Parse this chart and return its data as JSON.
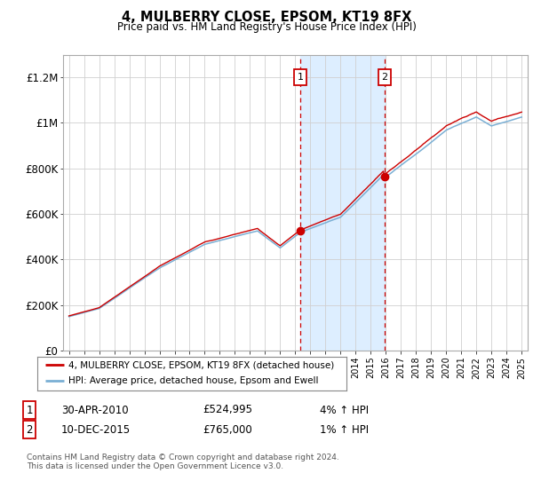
{
  "title": "4, MULBERRY CLOSE, EPSOM, KT19 8FX",
  "subtitle": "Price paid vs. HM Land Registry's House Price Index (HPI)",
  "ylim": [
    0,
    1300000
  ],
  "yticks": [
    0,
    200000,
    400000,
    600000,
    800000,
    1000000,
    1200000
  ],
  "ytick_labels": [
    "£0",
    "£200K",
    "£400K",
    "£600K",
    "£800K",
    "£1M",
    "£1.2M"
  ],
  "sale1_year": 2010.33,
  "sale1_price": 524995,
  "sale2_year": 2015.92,
  "sale2_price": 765000,
  "line_color_property": "#cc0000",
  "line_color_hpi": "#7aafd4",
  "shaded_region_color": "#ddeeff",
  "vline_color": "#cc0000",
  "box_color": "#cc0000",
  "footer": "Contains HM Land Registry data © Crown copyright and database right 2024.\nThis data is licensed under the Open Government Licence v3.0.",
  "legend_label1": "4, MULBERRY CLOSE, EPSOM, KT19 8FX (detached house)",
  "legend_label2": "HPI: Average price, detached house, Epsom and Ewell",
  "table_row1": [
    "1",
    "30-APR-2010",
    "£524,995",
    "4% ↑ HPI"
  ],
  "table_row2": [
    "2",
    "10-DEC-2015",
    "£765,000",
    "1% ↑ HPI"
  ],
  "xstart": 1995,
  "xend": 2025
}
